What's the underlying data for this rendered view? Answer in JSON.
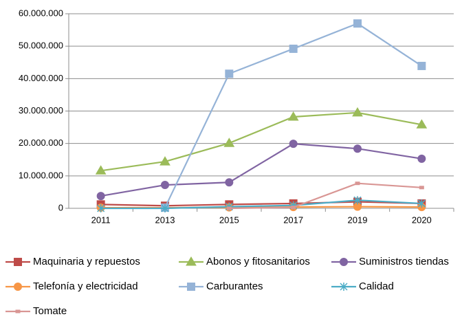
{
  "chart_data": {
    "type": "line",
    "categories": [
      "2011",
      "2013",
      "2015",
      "2017",
      "2019",
      "2020"
    ],
    "ylim": [
      0,
      60000000
    ],
    "yticks": [
      0,
      {
        "value": 10000000,
        "label": "10.000.000"
      },
      {
        "value": 20000000,
        "label": "20.000.000"
      },
      {
        "value": 30000000,
        "label": "30.000.000"
      },
      {
        "value": 40000000,
        "label": "40.000.000"
      },
      {
        "value": 50000000,
        "label": "50.000.000"
      },
      {
        "value": 60000000,
        "label": "60.000.000"
      }
    ],
    "grid": true,
    "legend": "bottom",
    "series": [
      {
        "name": "Maquinaria y repuestos",
        "color": "#be4b48",
        "marker": "square",
        "values": [
          1200000,
          800000,
          1200000,
          1500000,
          2000000,
          1500000
        ]
      },
      {
        "name": "Abonos y fitosanitarios",
        "color": "#9bbb59",
        "marker": "triangle",
        "values": [
          11600000,
          14400000,
          20100000,
          28200000,
          29500000,
          25800000
        ]
      },
      {
        "name": "Suministros tiendas",
        "color": "#8064a2",
        "marker": "circle",
        "values": [
          3800000,
          7200000,
          8000000,
          19900000,
          18400000,
          15300000
        ]
      },
      {
        "name": "Telefonía y electricidad",
        "color": "#f79646",
        "marker": "circle",
        "values": [
          200000,
          200000,
          300000,
          400000,
          500000,
          400000
        ]
      },
      {
        "name": "Carburantes",
        "color": "#95b3d7",
        "marker": "square",
        "values": [
          null,
          200000,
          41500000,
          49200000,
          57000000,
          43900000
        ]
      },
      {
        "name": "Calidad",
        "color": "#4bacc6",
        "marker": "star",
        "values": [
          0,
          0,
          500000,
          900000,
          2500000,
          1500000
        ]
      },
      {
        "name": "Tomate",
        "color": "#d99694",
        "marker": "dash",
        "values": [
          null,
          null,
          0,
          300000,
          7700000,
          6400000
        ]
      }
    ]
  }
}
